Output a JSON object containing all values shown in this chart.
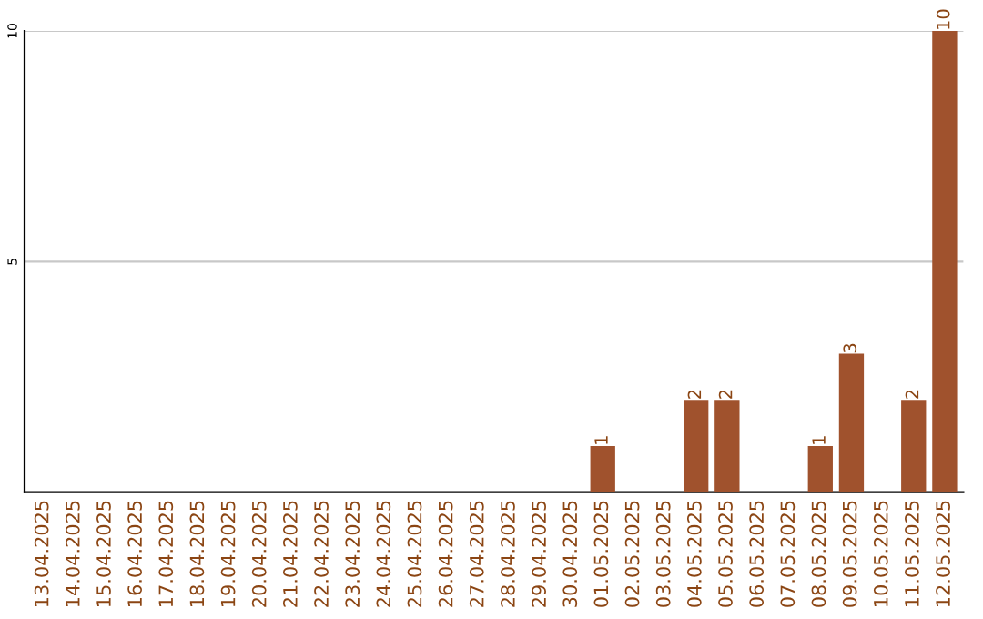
{
  "chart_data": {
    "type": "bar",
    "categories": [
      "13.04.2025",
      "14.04.2025",
      "15.04.2025",
      "16.04.2025",
      "17.04.2025",
      "18.04.2025",
      "19.04.2025",
      "20.04.2025",
      "21.04.2025",
      "22.04.2025",
      "23.04.2025",
      "24.04.2025",
      "25.04.2025",
      "26.04.2025",
      "27.04.2025",
      "28.04.2025",
      "29.04.2025",
      "30.04.2025",
      "01.05.2025",
      "02.05.2025",
      "03.05.2025",
      "04.05.2025",
      "05.05.2025",
      "06.05.2025",
      "07.05.2025",
      "08.05.2025",
      "09.05.2025",
      "10.05.2025",
      "11.05.2025",
      "12.05.2025"
    ],
    "values": [
      0,
      0,
      0,
      0,
      0,
      0,
      0,
      0,
      0,
      0,
      0,
      0,
      0,
      0,
      0,
      0,
      0,
      0,
      1,
      0,
      0,
      2,
      2,
      0,
      0,
      1,
      3,
      0,
      2,
      10
    ],
    "value_labels": [
      null,
      null,
      null,
      null,
      null,
      null,
      null,
      null,
      null,
      null,
      null,
      null,
      null,
      null,
      null,
      null,
      null,
      null,
      "1",
      null,
      null,
      "2",
      "2",
      null,
      null,
      "1",
      "3",
      null,
      "2",
      "10"
    ],
    "color": "#a0522d",
    "ylim": [
      0,
      10
    ],
    "yticks": [
      5,
      10
    ],
    "grid": "y",
    "legend": false
  }
}
